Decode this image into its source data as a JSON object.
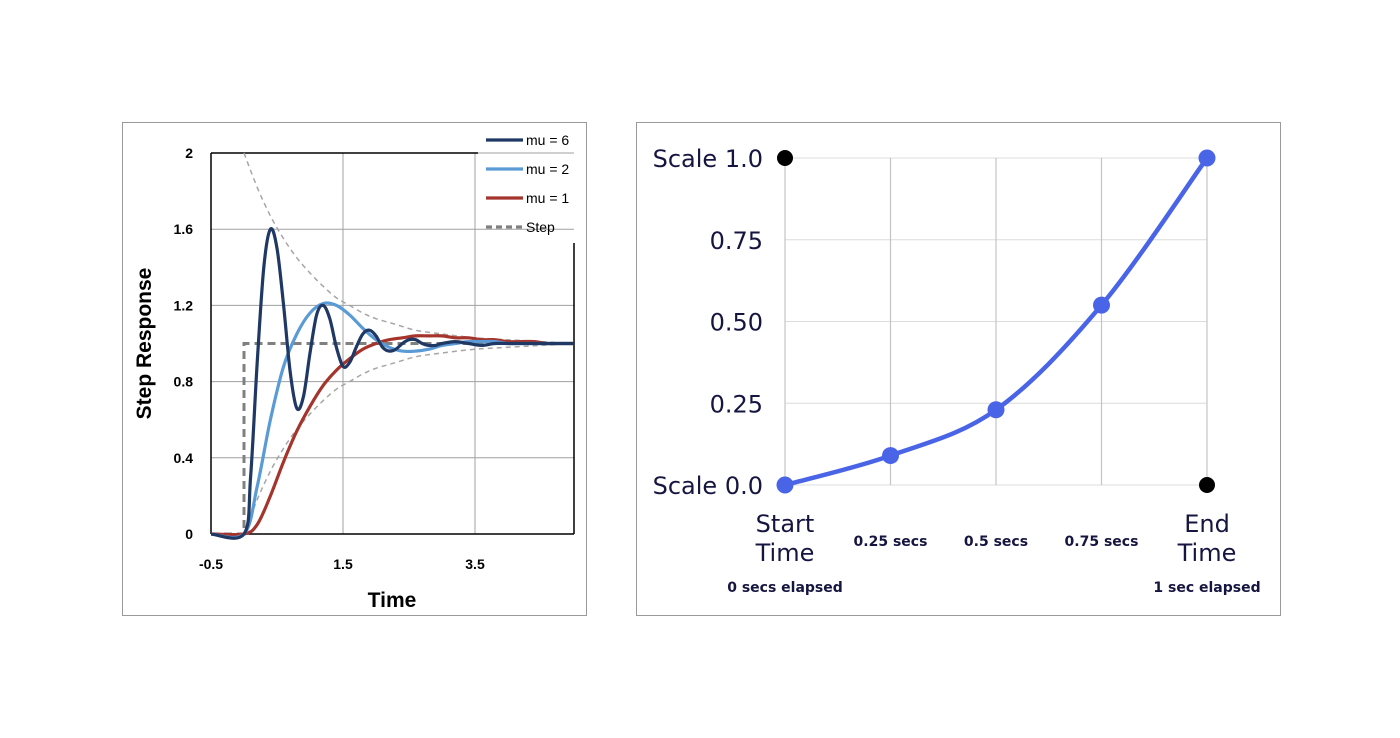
{
  "chart_data": [
    {
      "type": "line",
      "xlabel": "Time",
      "ylabel": "Step Response",
      "xlim": [
        -0.5,
        5.0
      ],
      "ylim": [
        0,
        2
      ],
      "x_ticks": [
        "-0.5",
        "1.5",
        "3.5"
      ],
      "x_tick_values": [
        -0.5,
        1.5,
        3.5
      ],
      "y_ticks": [
        "0",
        "0.4",
        "0.8",
        "1.2",
        "1.6",
        "2"
      ],
      "y_tick_values": [
        0,
        0.4,
        0.8,
        1.2,
        1.6,
        2
      ],
      "grid": true,
      "legend_position": "top-right",
      "colors": {
        "mu6": "#1f3864",
        "mu2": "#5b9bd5",
        "mu1": "#a5342c",
        "step": "#808080",
        "envelope": "#a6a6a6"
      },
      "series": [
        {
          "name": "mu = 6",
          "x": [
            -0.5,
            0.0,
            0.1,
            0.2,
            0.3,
            0.4,
            0.5,
            0.6,
            0.7,
            0.8,
            0.9,
            1.0,
            1.1,
            1.2,
            1.3,
            1.4,
            1.5,
            1.6,
            1.7,
            1.8,
            1.9,
            2.0,
            2.1,
            2.2,
            2.3,
            2.4,
            2.5,
            2.6,
            2.7,
            2.8,
            2.9,
            3.0,
            3.2,
            3.4,
            3.6,
            3.8,
            4.0,
            4.2,
            4.4,
            4.6,
            4.8,
            5.0
          ],
          "y": [
            0,
            0,
            0.3,
            0.9,
            1.4,
            1.6,
            1.5,
            1.2,
            0.85,
            0.66,
            0.72,
            0.95,
            1.15,
            1.2,
            1.13,
            0.98,
            0.88,
            0.9,
            0.98,
            1.05,
            1.07,
            1.04,
            0.98,
            0.96,
            0.97,
            1.0,
            1.02,
            1.02,
            1.0,
            0.99,
            0.99,
            1.0,
            1.01,
            1.0,
            0.99,
            1.0,
            1.0,
            1.0,
            1.0,
            1.0,
            1.0,
            1.0
          ]
        },
        {
          "name": "mu = 2",
          "x": [
            -0.5,
            0.0,
            0.2,
            0.4,
            0.6,
            0.8,
            1.0,
            1.2,
            1.4,
            1.6,
            1.8,
            2.0,
            2.2,
            2.4,
            2.6,
            2.8,
            3.0,
            3.2,
            3.4,
            3.6,
            3.8,
            4.0,
            4.2,
            4.4,
            4.6,
            4.8,
            5.0
          ],
          "y": [
            0,
            0,
            0.25,
            0.6,
            0.88,
            1.05,
            1.16,
            1.21,
            1.2,
            1.15,
            1.08,
            1.02,
            0.98,
            0.96,
            0.96,
            0.97,
            0.99,
            1.0,
            1.01,
            1.01,
            1.01,
            1.0,
            1.0,
            1.0,
            1.0,
            1.0,
            1.0
          ]
        },
        {
          "name": "mu = 1",
          "x": [
            -0.5,
            0.0,
            0.2,
            0.4,
            0.6,
            0.8,
            1.0,
            1.2,
            1.4,
            1.6,
            1.8,
            2.0,
            2.2,
            2.4,
            2.6,
            2.8,
            3.0,
            3.2,
            3.4,
            3.6,
            3.8,
            4.0,
            4.2,
            4.4,
            4.6,
            4.8,
            5.0
          ],
          "y": [
            0,
            0,
            0.05,
            0.2,
            0.38,
            0.54,
            0.67,
            0.78,
            0.86,
            0.92,
            0.97,
            1.0,
            1.02,
            1.03,
            1.04,
            1.04,
            1.04,
            1.03,
            1.03,
            1.02,
            1.02,
            1.01,
            1.01,
            1.01,
            1.0,
            1.0,
            1.0
          ]
        },
        {
          "name": "Step",
          "x": [
            -0.5,
            0.0,
            0.0,
            5.0
          ],
          "y": [
            0,
            0,
            1,
            1
          ]
        }
      ],
      "envelope": [
        {
          "x": [
            0.0,
            0.2,
            0.4,
            0.6,
            0.8,
            1.0,
            1.2,
            1.4,
            1.6,
            1.8,
            2.0,
            2.3,
            2.6,
            3.0,
            3.5,
            4.0,
            4.5,
            5.0
          ],
          "y": [
            2.0,
            1.82,
            1.67,
            1.55,
            1.45,
            1.37,
            1.3,
            1.24,
            1.2,
            1.16,
            1.13,
            1.1,
            1.07,
            1.05,
            1.03,
            1.02,
            1.01,
            1.0
          ]
        },
        {
          "x": [
            0.0,
            0.2,
            0.4,
            0.6,
            0.8,
            1.0,
            1.2,
            1.4,
            1.6,
            1.8,
            2.0,
            2.3,
            2.6,
            3.0,
            3.5,
            4.0,
            4.5,
            5.0
          ],
          "y": [
            0.0,
            0.18,
            0.33,
            0.45,
            0.55,
            0.63,
            0.7,
            0.76,
            0.8,
            0.84,
            0.87,
            0.9,
            0.93,
            0.95,
            0.97,
            0.98,
            0.99,
            1.0
          ]
        }
      ]
    },
    {
      "type": "line",
      "title": "",
      "xlim": [
        0,
        1
      ],
      "ylim": [
        0,
        1
      ],
      "grid": true,
      "color": "#4a64e8",
      "marker_color": "#4a64e8",
      "corner_dot_color": "#000000",
      "x_tick_values": [
        0,
        0.25,
        0.5,
        0.75,
        1.0
      ],
      "x_ticks": [
        {
          "main": [
            "Start",
            "Time"
          ],
          "sub": "0 secs elapsed"
        },
        {
          "main": [],
          "sub": "0.25 secs"
        },
        {
          "main": [],
          "sub": "0.5 secs"
        },
        {
          "main": [],
          "sub": "0.75 secs"
        },
        {
          "main": [
            "End",
            "Time"
          ],
          "sub": "1 sec elapsed"
        }
      ],
      "y_tick_values": [
        0,
        0.25,
        0.5,
        0.75,
        1.0
      ],
      "y_ticks": [
        "Scale 0.0",
        "0.25",
        "0.50",
        "0.75",
        "Scale 1.0"
      ],
      "series": [
        {
          "x": [
            0,
            0.25,
            0.5,
            0.75,
            1.0
          ],
          "y": [
            0,
            0.09,
            0.23,
            0.55,
            1.0
          ]
        }
      ],
      "corner_points": [
        {
          "x": 0,
          "y": 1.0
        },
        {
          "x": 1.0,
          "y": 0
        }
      ]
    }
  ]
}
